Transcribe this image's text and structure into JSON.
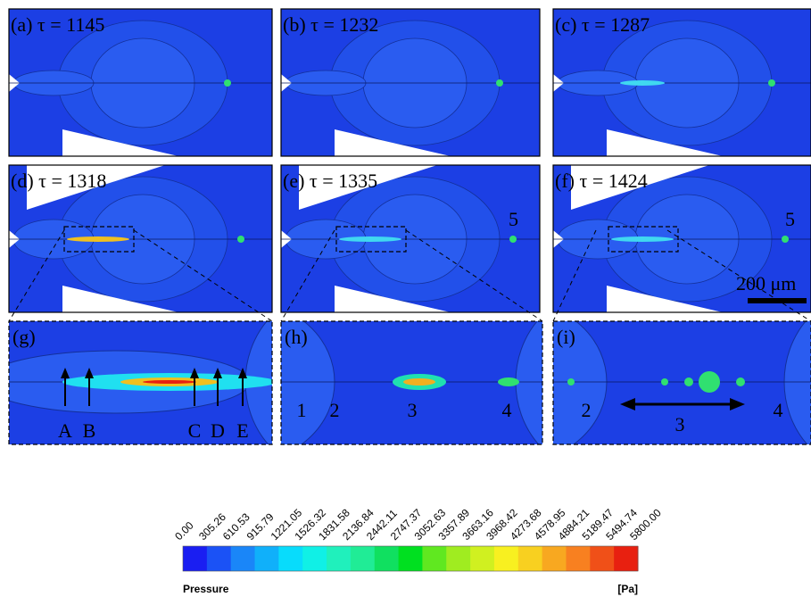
{
  "panels": [
    {
      "label": "(a) τ = 1145"
    },
    {
      "label": "(b) τ = 1232"
    },
    {
      "label": "(c) τ = 1287"
    },
    {
      "label": "(d) τ = 1318"
    },
    {
      "label": "(e) τ = 1335"
    },
    {
      "label": "(f) τ = 1424"
    }
  ],
  "zoom_panels": [
    {
      "label": "(g)",
      "markers": [
        "A",
        "B",
        "C",
        "D",
        "E"
      ]
    },
    {
      "label": "(h)",
      "markers": [
        "1",
        "2",
        "3",
        "4"
      ]
    },
    {
      "label": "(i)",
      "markers": [
        "2",
        "3",
        "4"
      ]
    }
  ],
  "annotations": {
    "panel_e": "5",
    "panel_f": "5",
    "scale_bar": "200 μm"
  },
  "colorbar": {
    "ticks": [
      "0.00",
      "305.26",
      "610.53",
      "915.79",
      "1221.05",
      "1526.32",
      "1831.58",
      "2136.84",
      "2442.11",
      "2747.37",
      "3052.63",
      "3357.89",
      "3663.16",
      "3968.42",
      "4273.68",
      "4578.95",
      "4884.21",
      "5189.47",
      "5494.74",
      "5800.00"
    ],
    "colors": [
      "#1a1ef2",
      "#1b52f6",
      "#1a86f8",
      "#10b0fa",
      "#08dcfc",
      "#10f0e6",
      "#20f0bc",
      "#20ec96",
      "#10e060",
      "#00e020",
      "#60e820",
      "#a0ec20",
      "#d0f020",
      "#f8f020",
      "#f8d020",
      "#f8a820",
      "#f88020",
      "#f05018",
      "#e82010"
    ],
    "label": "Pressure",
    "unit": "[Pa]"
  }
}
